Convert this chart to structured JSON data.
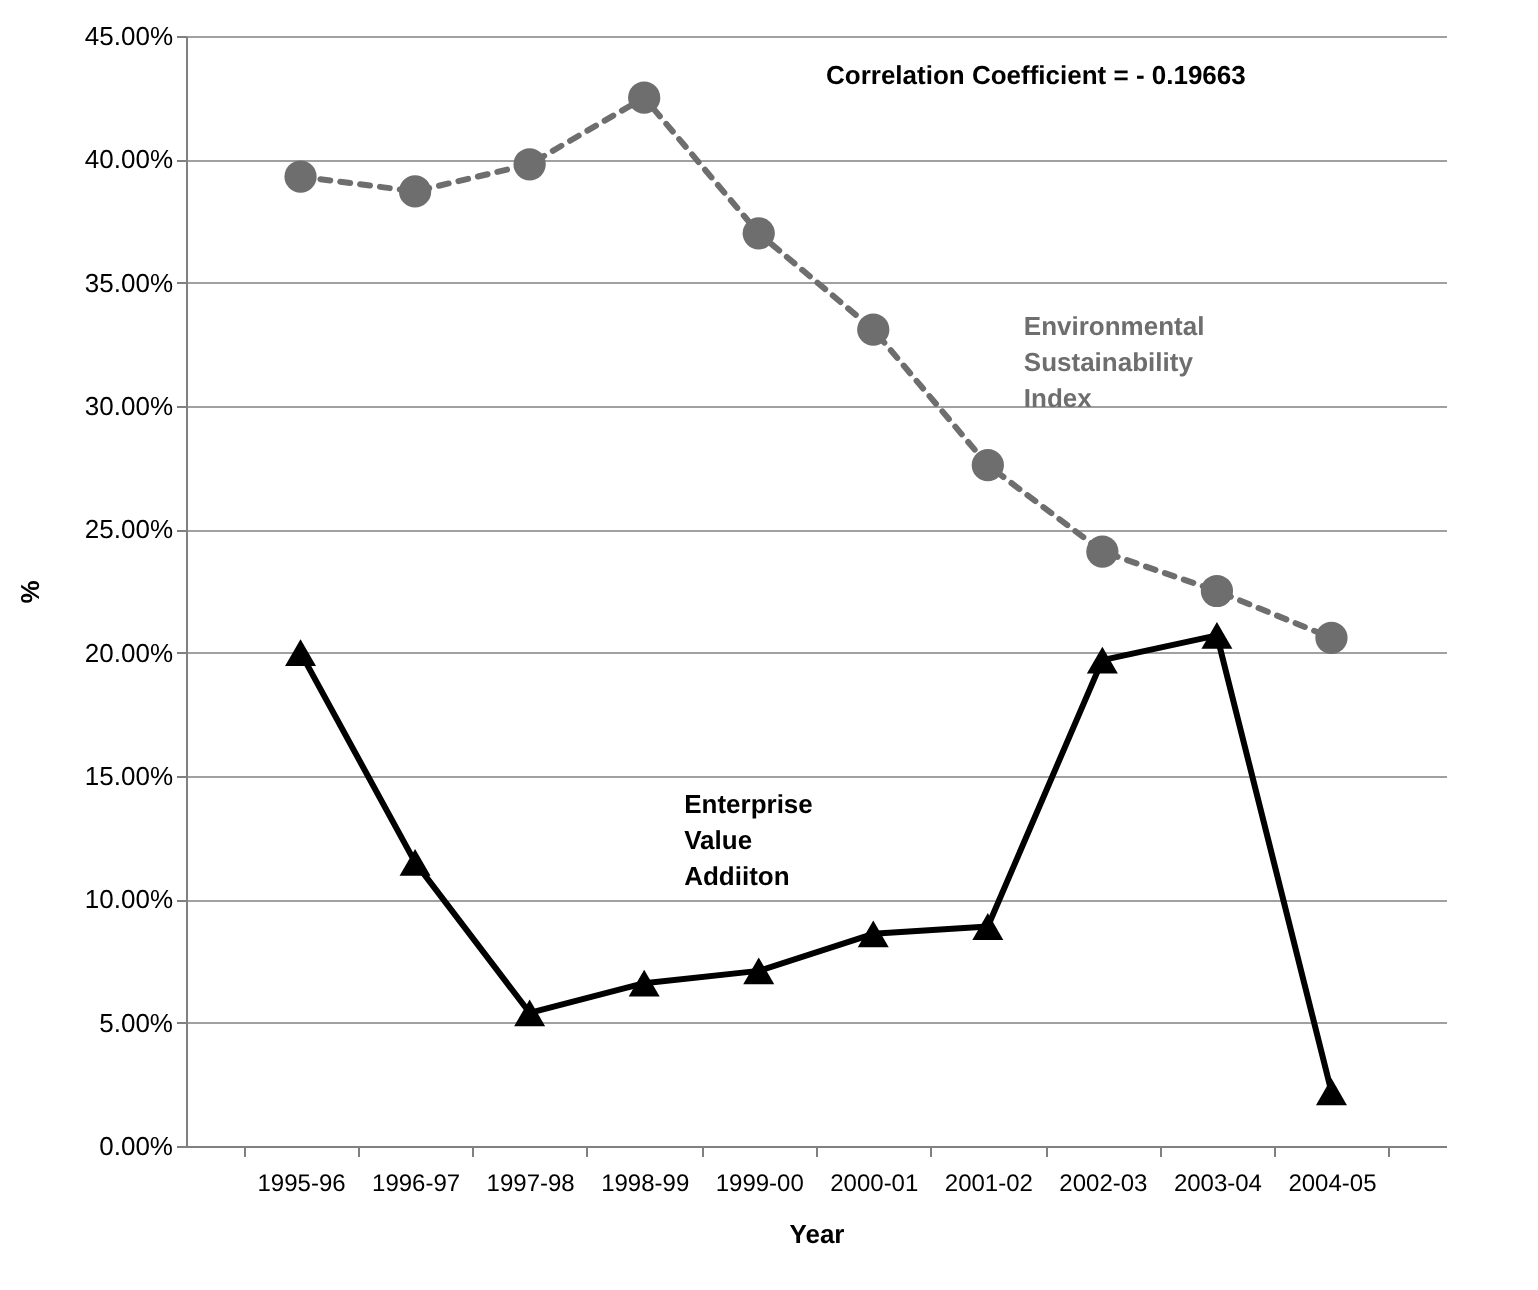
{
  "chart_data": {
    "type": "line",
    "xlabel": "Year",
    "ylabel": "%",
    "categories": [
      "1995-96",
      "1996-97",
      "1997-98",
      "1998-99",
      "1999-00",
      "2000-01",
      "2001-02",
      "2002-03",
      "2003-04",
      "2004-05"
    ],
    "series": [
      {
        "name": "Environmental Sustainability Index",
        "color": "#6e6e6e",
        "marker": "circle",
        "line_style": "dashed",
        "values": [
          39.3,
          38.7,
          39.8,
          42.5,
          37.0,
          33.1,
          27.6,
          24.1,
          22.5,
          20.6
        ]
      },
      {
        "name": "Enterprise Value Addiiton",
        "color": "#000000",
        "marker": "triangle",
        "line_style": "solid",
        "values": [
          20.0,
          11.5,
          5.4,
          6.6,
          7.1,
          8.6,
          8.9,
          19.7,
          20.7,
          2.2
        ]
      }
    ],
    "ylim": [
      0,
      45
    ],
    "yticks": [
      {
        "value": 0,
        "label": "0.00%"
      },
      {
        "value": 5,
        "label": "5.00%"
      },
      {
        "value": 10,
        "label": "10.00%"
      },
      {
        "value": 15,
        "label": "15.00%"
      },
      {
        "value": 20,
        "label": "20.00%"
      },
      {
        "value": 25,
        "label": "25.00%"
      },
      {
        "value": 30,
        "label": "30.00%"
      },
      {
        "value": 35,
        "label": "35.00%"
      },
      {
        "value": 40,
        "label": "40.00%"
      },
      {
        "value": 45,
        "label": "45.00%"
      }
    ],
    "grid": "y",
    "legend": false,
    "annotations": [
      "Correlation Coefficient =  - 0.19663"
    ]
  }
}
